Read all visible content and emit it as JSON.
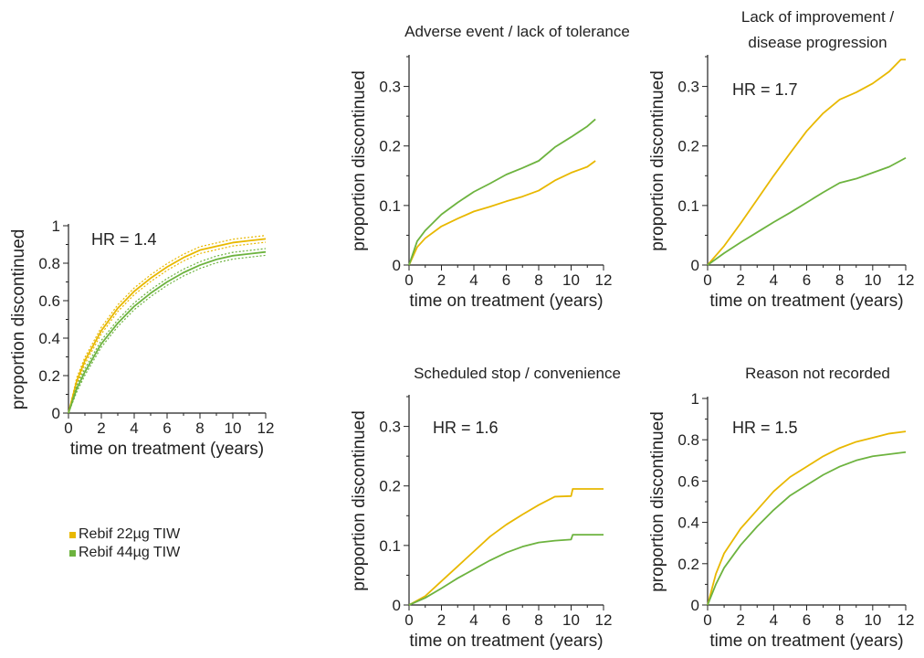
{
  "colors": {
    "rebif22": "#e8b800",
    "rebif44": "#6db33f",
    "axis": "#222222"
  },
  "legend": {
    "items": [
      {
        "label": "Rebif 22µg TIW",
        "color": "#e8b800"
      },
      {
        "label": "Rebif 44µg TIW",
        "color": "#6db33f"
      }
    ]
  },
  "chart_data": [
    {
      "type": "line",
      "title": "",
      "annotation": "HR = 1.4",
      "xlabel": "time on treatment (years)",
      "ylabel": "proportion discontinued",
      "xlim": [
        0,
        12
      ],
      "ylim": [
        0,
        1
      ],
      "xticks": [
        0,
        2,
        4,
        6,
        8,
        10,
        12
      ],
      "yticks": [
        0,
        0.2,
        0.4,
        0.6,
        0.8,
        1
      ],
      "ytick_labels": [
        "0",
        "0.2",
        "0.4",
        "0.6",
        "0.8",
        "1"
      ],
      "confidence_bands": true,
      "series": [
        {
          "name": "Rebif 22µg TIW",
          "color": "#e8b800",
          "x": [
            0,
            0.5,
            1,
            2,
            3,
            4,
            5,
            6,
            7,
            8,
            9,
            10,
            11,
            12
          ],
          "y": [
            0,
            0.17,
            0.28,
            0.44,
            0.56,
            0.65,
            0.72,
            0.78,
            0.83,
            0.87,
            0.89,
            0.91,
            0.92,
            0.93
          ]
        },
        {
          "name": "Rebif 44µg TIW",
          "color": "#6db33f",
          "x": [
            0,
            0.5,
            1,
            2,
            3,
            4,
            5,
            6,
            7,
            8,
            9,
            10,
            11,
            12
          ],
          "y": [
            0,
            0.13,
            0.22,
            0.37,
            0.48,
            0.57,
            0.64,
            0.7,
            0.75,
            0.79,
            0.82,
            0.84,
            0.85,
            0.86
          ]
        }
      ]
    },
    {
      "type": "line",
      "title": "Adverse event / lack of tolerance",
      "annotation": "",
      "xlabel": "time on treatment (years)",
      "ylabel": "proportion discontinued",
      "xlim": [
        0,
        12
      ],
      "ylim": [
        0,
        0.35
      ],
      "xticks": [
        0,
        2,
        4,
        6,
        8,
        10,
        12
      ],
      "yticks": [
        0,
        0.1,
        0.2,
        0.3
      ],
      "ytick_labels": [
        "0",
        "0.1",
        "0.2",
        "0.3"
      ],
      "series": [
        {
          "name": "Rebif 22µg TIW",
          "color": "#e8b800",
          "x": [
            0,
            0.5,
            1,
            2,
            3,
            4,
            5,
            6,
            7,
            8,
            9,
            10,
            11,
            11.5
          ],
          "y": [
            0,
            0.03,
            0.045,
            0.065,
            0.078,
            0.09,
            0.098,
            0.107,
            0.115,
            0.125,
            0.142,
            0.155,
            0.165,
            0.175
          ]
        },
        {
          "name": "Rebif 44µg TIW",
          "color": "#6db33f",
          "x": [
            0,
            0.5,
            1,
            2,
            3,
            4,
            5,
            6,
            7,
            8,
            9,
            10,
            11,
            11.5
          ],
          "y": [
            0,
            0.04,
            0.058,
            0.085,
            0.105,
            0.123,
            0.137,
            0.152,
            0.163,
            0.175,
            0.198,
            0.215,
            0.233,
            0.245
          ]
        }
      ]
    },
    {
      "type": "line",
      "title": "Lack of improvement / disease progression",
      "title_lines": [
        "Lack of improvement /",
        "disease progression"
      ],
      "annotation": "HR = 1.7",
      "xlabel": "time on treatment (years)",
      "ylabel": "proportion discontinued",
      "xlim": [
        0,
        12
      ],
      "ylim": [
        0,
        0.35
      ],
      "xticks": [
        0,
        2,
        4,
        6,
        8,
        10,
        12
      ],
      "yticks": [
        0,
        0.1,
        0.2,
        0.3
      ],
      "ytick_labels": [
        "0",
        "0.1",
        "0.2",
        "0.3"
      ],
      "series": [
        {
          "name": "Rebif 22µg TIW",
          "color": "#e8b800",
          "x": [
            0,
            1,
            2,
            3,
            4,
            5,
            6,
            7,
            8,
            9,
            10,
            11,
            11.7,
            12
          ],
          "y": [
            0,
            0.032,
            0.07,
            0.11,
            0.15,
            0.188,
            0.225,
            0.255,
            0.278,
            0.29,
            0.305,
            0.325,
            0.345,
            0.345
          ]
        },
        {
          "name": "Rebif 44µg TIW",
          "color": "#6db33f",
          "x": [
            0,
            1,
            2,
            3,
            4,
            5,
            6,
            7,
            8,
            9,
            10,
            11,
            12
          ],
          "y": [
            0,
            0.02,
            0.038,
            0.055,
            0.072,
            0.088,
            0.105,
            0.122,
            0.138,
            0.145,
            0.155,
            0.165,
            0.18
          ]
        }
      ]
    },
    {
      "type": "line",
      "title": "Scheduled stop / convenience",
      "annotation": "HR = 1.6",
      "xlabel": "time on treatment (years)",
      "ylabel": "proportion discontinued",
      "xlim": [
        0,
        12
      ],
      "ylim": [
        0,
        0.35
      ],
      "xticks": [
        0,
        2,
        4,
        6,
        8,
        10,
        12
      ],
      "yticks": [
        0,
        0.1,
        0.2,
        0.3
      ],
      "ytick_labels": [
        "0",
        "0.1",
        "0.2",
        "0.3"
      ],
      "series": [
        {
          "name": "Rebif 22µg TIW",
          "color": "#e8b800",
          "x": [
            0,
            1,
            2,
            3,
            4,
            5,
            6,
            7,
            8,
            9,
            10,
            10.1,
            11,
            12
          ],
          "y": [
            0,
            0.015,
            0.04,
            0.065,
            0.09,
            0.115,
            0.135,
            0.152,
            0.168,
            0.182,
            0.183,
            0.195,
            0.195,
            0.195
          ]
        },
        {
          "name": "Rebif 44µg TIW",
          "color": "#6db33f",
          "x": [
            0,
            1,
            2,
            3,
            4,
            5,
            6,
            7,
            8,
            9,
            10,
            10.1,
            11,
            12
          ],
          "y": [
            0,
            0.012,
            0.028,
            0.045,
            0.06,
            0.075,
            0.088,
            0.098,
            0.105,
            0.108,
            0.11,
            0.118,
            0.118,
            0.118
          ]
        }
      ]
    },
    {
      "type": "line",
      "title": "Reason not recorded",
      "annotation": "HR = 1.5",
      "xlabel": "time on treatment (years)",
      "ylabel": "proportion discontinued",
      "xlim": [
        0,
        12
      ],
      "ylim": [
        0,
        1
      ],
      "xticks": [
        0,
        2,
        4,
        6,
        8,
        10,
        12
      ],
      "yticks": [
        0,
        0.2,
        0.4,
        0.6,
        0.8,
        1
      ],
      "ytick_labels": [
        "0",
        "0.2",
        "0.4",
        "0.6",
        "0.8",
        "1"
      ],
      "series": [
        {
          "name": "Rebif 22µg TIW",
          "color": "#e8b800",
          "x": [
            0,
            0.5,
            1,
            2,
            3,
            4,
            5,
            6,
            7,
            8,
            9,
            10,
            11,
            12
          ],
          "y": [
            0,
            0.15,
            0.25,
            0.37,
            0.46,
            0.55,
            0.62,
            0.67,
            0.72,
            0.76,
            0.79,
            0.81,
            0.83,
            0.84
          ]
        },
        {
          "name": "Rebif 44µg TIW",
          "color": "#6db33f",
          "x": [
            0,
            0.5,
            1,
            2,
            3,
            4,
            5,
            6,
            7,
            8,
            9,
            10,
            11,
            12
          ],
          "y": [
            0,
            0.1,
            0.18,
            0.29,
            0.38,
            0.46,
            0.53,
            0.58,
            0.63,
            0.67,
            0.7,
            0.72,
            0.73,
            0.74
          ]
        }
      ]
    }
  ]
}
